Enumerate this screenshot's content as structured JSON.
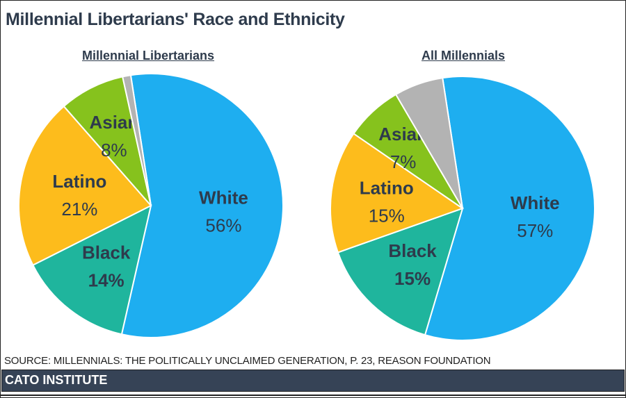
{
  "title": "Millennial Libertarians' Race and Ethnicity",
  "source": "SOURCE: MILLENNIALS: THE POLITICALLY UNCLAIMED GENERATION, P. 23, REASON FOUNDATION",
  "footer": "CATO INSTITUTE",
  "colors": {
    "White": "#1eaef0",
    "Black": "#1fb59d",
    "Latino": "#fdbc1c",
    "Asian": "#86c21d",
    "Other": "#b3b3b3",
    "text": "#2e3b4c"
  },
  "chart_data": [
    {
      "type": "pie",
      "title": "Millennial Libertarians",
      "categories": [
        "White",
        "Black",
        "Latino",
        "Asian",
        ""
      ],
      "values": [
        56,
        14,
        21,
        8,
        1
      ],
      "labels": [
        "56%",
        "14%",
        "21%",
        "8%",
        ""
      ]
    },
    {
      "type": "pie",
      "title": "All Millennials",
      "categories": [
        "White",
        "Black",
        "Latino",
        "Asian",
        ""
      ],
      "values": [
        57,
        15,
        15,
        7,
        6
      ],
      "labels": [
        "57%",
        "15%",
        "15%",
        "7%",
        ""
      ]
    }
  ]
}
